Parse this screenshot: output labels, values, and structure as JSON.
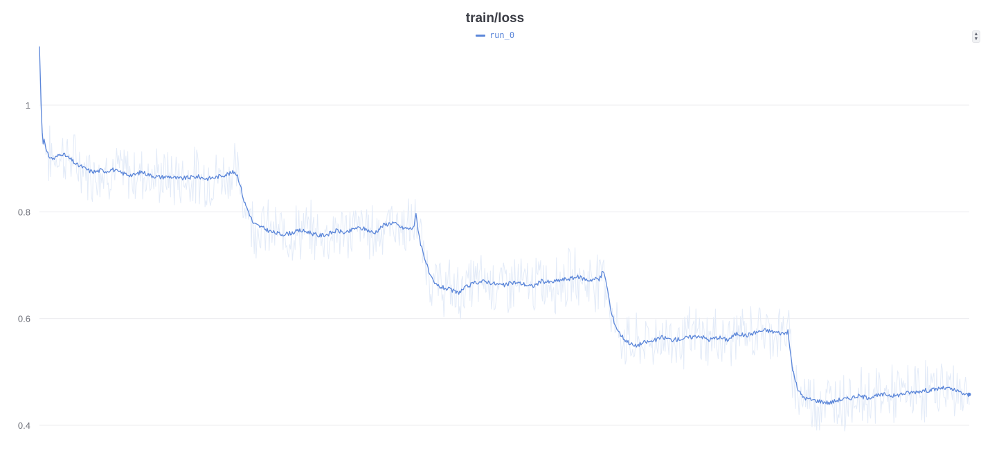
{
  "colors": {
    "line": "#5b86d9",
    "raw": "#e3ebf8",
    "grid": "#ececef",
    "text": "#3b3d45"
  },
  "scroll_control": {
    "up_icon": "▲",
    "down_icon": "▼"
  },
  "chart_data": {
    "type": "line",
    "title": "train/loss",
    "xlabel": "",
    "ylabel": "",
    "ylim": [
      0.4,
      1.12
    ],
    "yticks": [
      {
        "value": 1,
        "label": "1"
      },
      {
        "value": 0.8,
        "label": "0.8"
      },
      {
        "value": 0.6,
        "label": "0.6"
      },
      {
        "value": 0.4,
        "label": "0.4"
      }
    ],
    "grid": true,
    "legend_position": "top-center",
    "series": [
      {
        "name": "run_0",
        "color": "#5b86d9",
        "x": [
          0,
          1,
          2,
          3,
          4,
          5,
          6,
          8,
          10,
          13,
          16,
          20,
          24,
          28,
          32,
          36,
          40,
          45,
          50,
          55,
          60,
          66,
          72,
          78,
          84,
          90,
          96,
          100,
          110,
          120,
          130,
          140,
          150,
          160,
          170,
          180,
          190,
          200,
          205,
          210,
          213,
          216,
          220,
          225,
          230,
          240,
          250,
          260,
          270,
          280,
          290,
          300,
          310,
          320,
          330,
          340,
          350,
          360,
          370,
          380,
          390,
          400,
          403,
          405,
          407,
          410,
          415,
          420,
          425,
          430,
          440,
          450,
          460,
          470,
          480,
          490,
          500,
          510,
          520,
          530,
          540,
          550,
          560,
          570,
          580,
          590,
          600,
          602,
          604,
          606,
          610,
          615,
          620,
          625,
          630,
          640,
          650,
          660,
          670,
          680,
          690,
          700,
          710,
          720,
          730,
          740,
          750,
          760,
          770,
          780,
          790,
          800,
          805,
          807,
          810,
          815,
          820,
          825,
          830,
          840,
          850,
          860,
          870,
          880,
          890,
          900,
          910,
          920,
          930,
          940,
          950,
          960,
          970,
          980,
          990,
          1000
        ],
        "y": [
          1.11,
          1.05,
          0.99,
          0.95,
          0.93,
          0.94,
          0.925,
          0.91,
          0.905,
          0.9,
          0.9,
          0.905,
          0.91,
          0.905,
          0.9,
          0.895,
          0.888,
          0.885,
          0.88,
          0.876,
          0.875,
          0.878,
          0.876,
          0.88,
          0.875,
          0.872,
          0.87,
          0.868,
          0.875,
          0.868,
          0.865,
          0.866,
          0.862,
          0.864,
          0.866,
          0.862,
          0.865,
          0.87,
          0.872,
          0.875,
          0.868,
          0.85,
          0.82,
          0.8,
          0.778,
          0.77,
          0.762,
          0.758,
          0.76,
          0.765,
          0.762,
          0.755,
          0.758,
          0.765,
          0.76,
          0.77,
          0.768,
          0.76,
          0.775,
          0.78,
          0.77,
          0.768,
          0.775,
          0.795,
          0.77,
          0.74,
          0.71,
          0.68,
          0.665,
          0.66,
          0.655,
          0.648,
          0.66,
          0.668,
          0.67,
          0.665,
          0.662,
          0.668,
          0.665,
          0.66,
          0.67,
          0.668,
          0.672,
          0.675,
          0.678,
          0.672,
          0.675,
          0.672,
          0.68,
          0.69,
          0.665,
          0.61,
          0.585,
          0.57,
          0.56,
          0.548,
          0.555,
          0.558,
          0.565,
          0.56,
          0.562,
          0.565,
          0.568,
          0.56,
          0.565,
          0.56,
          0.572,
          0.568,
          0.574,
          0.578,
          0.575,
          0.572,
          0.575,
          0.545,
          0.505,
          0.47,
          0.455,
          0.45,
          0.448,
          0.445,
          0.442,
          0.448,
          0.45,
          0.455,
          0.452,
          0.455,
          0.458,
          0.455,
          0.46,
          0.462,
          0.465,
          0.466,
          0.47,
          0.468,
          0.462,
          0.455
        ]
      }
    ]
  }
}
